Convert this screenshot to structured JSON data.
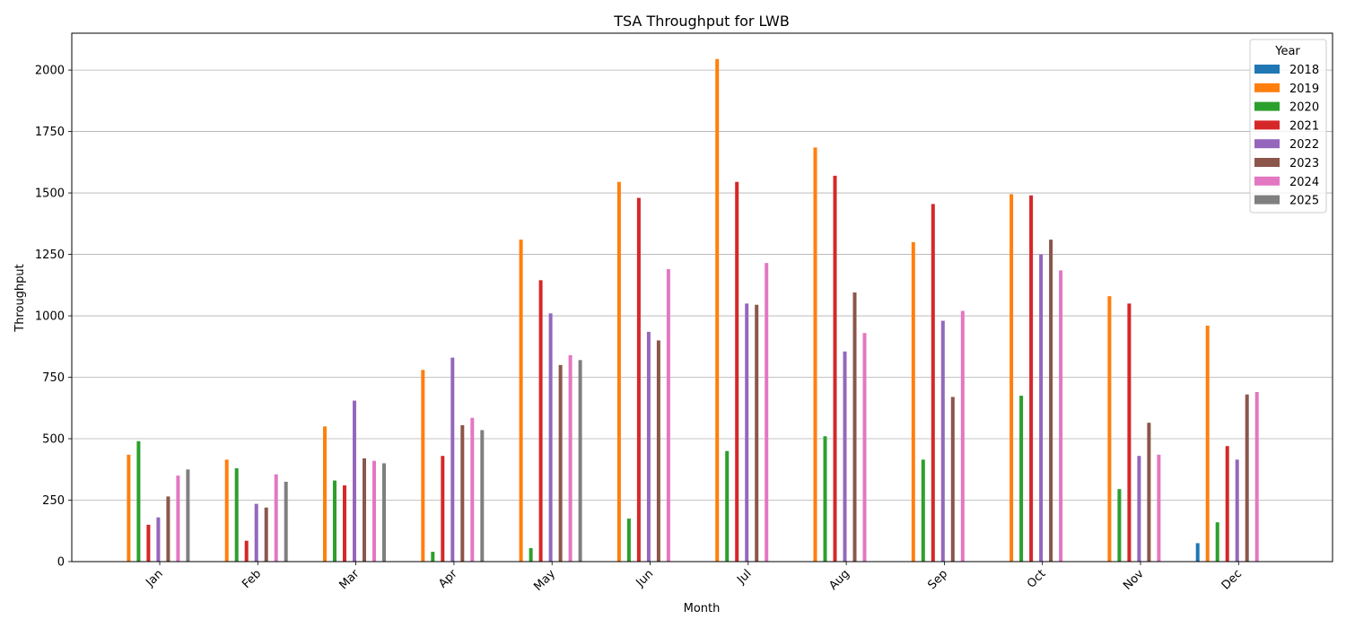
{
  "chart_data": {
    "type": "bar",
    "title": "TSA Throughput for LWB",
    "xlabel": "Month",
    "ylabel": "Throughput",
    "ylim": [
      0,
      2150
    ],
    "yticks": [
      0,
      250,
      500,
      750,
      1000,
      1250,
      1500,
      1750,
      2000
    ],
    "grid": "horizontal",
    "legend_title": "Year",
    "legend_position": "top-right",
    "categories": [
      "Jan",
      "Feb",
      "Mar",
      "Apr",
      "May",
      "Jun",
      "Jul",
      "Aug",
      "Sep",
      "Oct",
      "Nov",
      "Dec"
    ],
    "series": [
      {
        "name": "2018",
        "color": "#1f77b4",
        "values": [
          null,
          null,
          null,
          null,
          null,
          null,
          null,
          null,
          null,
          null,
          null,
          75
        ]
      },
      {
        "name": "2019",
        "color": "#ff7f0e",
        "values": [
          435,
          415,
          550,
          780,
          1310,
          1545,
          2045,
          1685,
          1300,
          1495,
          1080,
          960
        ]
      },
      {
        "name": "2020",
        "color": "#2ca02c",
        "values": [
          490,
          380,
          330,
          40,
          55,
          175,
          450,
          510,
          415,
          675,
          295,
          160
        ]
      },
      {
        "name": "2021",
        "color": "#d62728",
        "values": [
          150,
          85,
          310,
          430,
          1145,
          1480,
          1545,
          1570,
          1455,
          1490,
          1050,
          470
        ]
      },
      {
        "name": "2022",
        "color": "#9467bd",
        "values": [
          180,
          235,
          655,
          830,
          1010,
          935,
          1050,
          855,
          980,
          1250,
          430,
          415
        ]
      },
      {
        "name": "2023",
        "color": "#8c564b",
        "values": [
          265,
          220,
          420,
          555,
          800,
          900,
          1045,
          1095,
          670,
          1310,
          565,
          680
        ]
      },
      {
        "name": "2024",
        "color": "#e377c2",
        "values": [
          350,
          355,
          410,
          585,
          840,
          1190,
          1215,
          930,
          1020,
          1185,
          435,
          690
        ]
      },
      {
        "name": "2025",
        "color": "#7f7f7f",
        "values": [
          375,
          325,
          400,
          535,
          820,
          null,
          null,
          null,
          null,
          null,
          null,
          null
        ]
      }
    ]
  }
}
